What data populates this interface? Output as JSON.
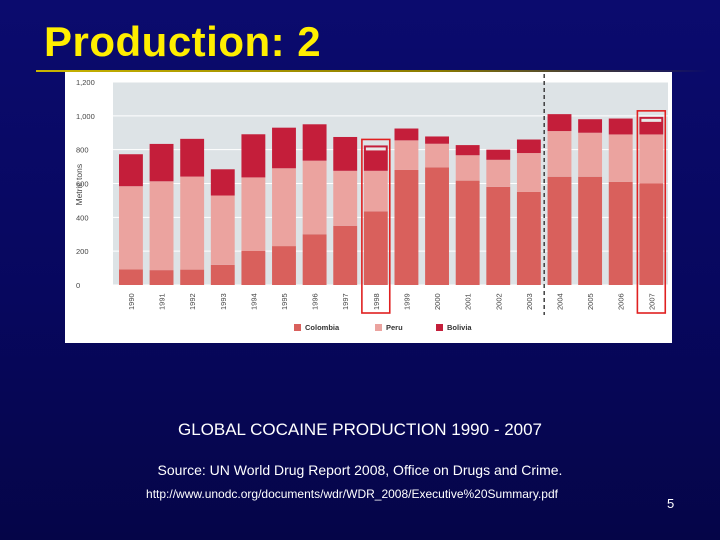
{
  "slide": {
    "title": "Production: 2",
    "caption": "GLOBAL COCAINE PRODUCTION 1990 - 2007",
    "source": "Source: UN World Drug Report 2008, Office on Drugs and Crime.",
    "url": "http://www.unodc.org/documents/wdr/WDR_2008/Executive%20Summary.pdf",
    "page_number": "5"
  },
  "chart_data": {
    "type": "bar",
    "stacked": true,
    "ylabel": "Metric tons",
    "ylim": [
      0,
      1200
    ],
    "yticks": [
      "0",
      "200",
      "400",
      "600",
      "800",
      "1,000",
      "1,200"
    ],
    "grid": true,
    "legend_position": "bottom",
    "categories": [
      "1990",
      "1991",
      "1992",
      "1993",
      "1994",
      "1995",
      "1996",
      "1997",
      "1998",
      "1999",
      "2000",
      "2001",
      "2002",
      "2003",
      "2004",
      "2005",
      "2006",
      "2007"
    ],
    "series": [
      {
        "name": "Colombia",
        "color": "#d9605c",
        "values": [
          92,
          88,
          91,
          119,
          201,
          230,
          300,
          350,
          435,
          680,
          695,
          617,
          580,
          550,
          640,
          640,
          610,
          600
        ]
      },
      {
        "name": "Peru",
        "color": "#eba39f",
        "values": [
          492,
          525,
          550,
          410,
          435,
          460,
          435,
          325,
          240,
          175,
          140,
          150,
          160,
          230,
          270,
          260,
          280,
          290
        ]
      },
      {
        "name": "Bolivia",
        "color": "#c41e3a",
        "values": [
          189,
          221,
          223,
          155,
          255,
          240,
          215,
          200,
          150,
          70,
          43,
          60,
          60,
          80,
          100,
          80,
          94,
          104
        ]
      }
    ],
    "highlighted_years": [
      "1998",
      "2007"
    ],
    "divider_after": "2003"
  }
}
